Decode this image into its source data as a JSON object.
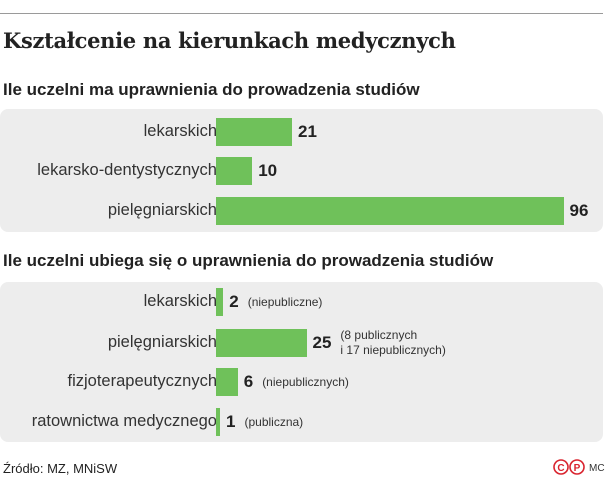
{
  "title": "Kształcenie na kierunkach medycznych",
  "source": "Źródło: MZ, MNiSW",
  "credit": "MC",
  "logo": {
    "text": "CP",
    "color": "#d9232e"
  },
  "colors": {
    "bar": "#6fc15a",
    "panel": "#ededed"
  },
  "chart_data": [
    {
      "type": "bar",
      "orientation": "horizontal",
      "title": "Ile uczelni ma uprawnienia do prowadzenia studiów",
      "categories": [
        "lekarskich",
        "lekarsko-dentystycznych",
        "pielęgniarskich"
      ],
      "values": [
        21,
        10,
        96
      ],
      "value_labels": [
        "21",
        "10",
        "96"
      ],
      "notes": [
        "",
        "",
        ""
      ]
    },
    {
      "type": "bar",
      "orientation": "horizontal",
      "title": "Ile uczelni ubiega się o uprawnienia do prowadzenia studiów",
      "categories": [
        "lekarskich",
        "pielęgniarskich",
        "fizjoterapeutycznych",
        "ratownictwa medycznego"
      ],
      "values": [
        2,
        25,
        6,
        1
      ],
      "value_labels": [
        "2",
        "25",
        "6",
        "1"
      ],
      "notes": [
        "(niepubliczne)",
        "(8 publicznych\ni 17 niepublicznych)",
        "(niepublicznych)",
        "(publiczna)"
      ]
    }
  ]
}
